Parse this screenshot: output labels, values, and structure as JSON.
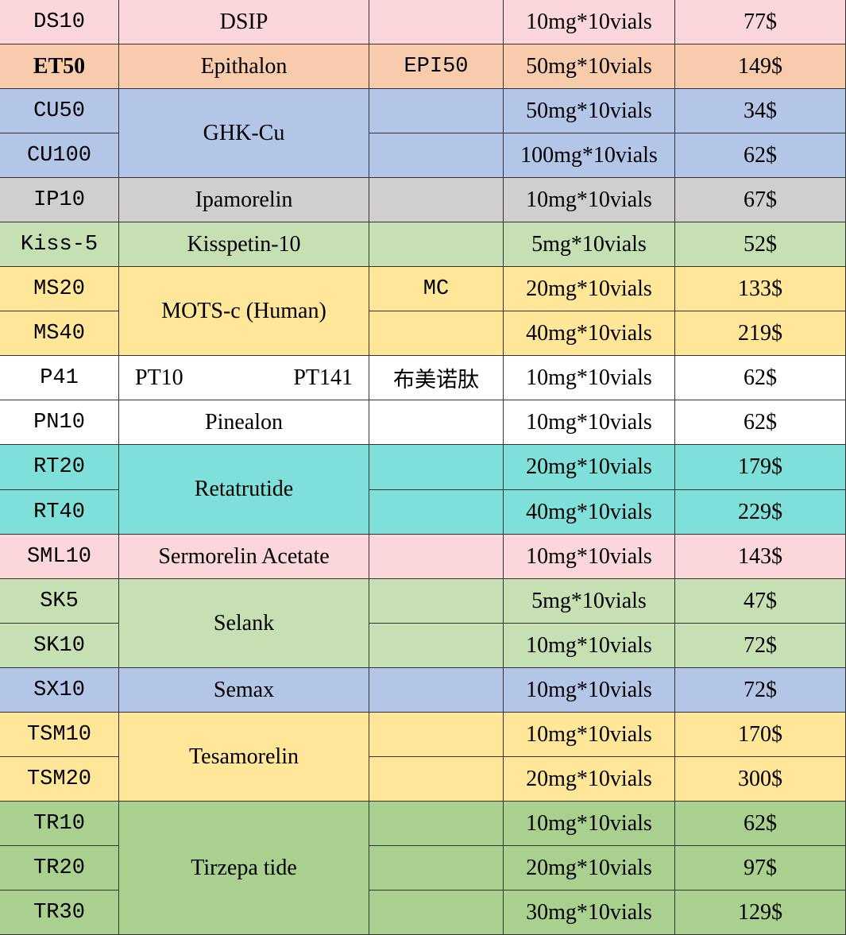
{
  "table": {
    "products": [
      {
        "name": "DSIP",
        "color": "#fbd7dc",
        "variants": [
          {
            "code": "DS10",
            "spec": "10mg*10vials",
            "price": "77$"
          }
        ]
      },
      {
        "name": "Epithalon",
        "color": "#f8cbad",
        "variants": [
          {
            "code": "ET50",
            "bold": true,
            "alias": "EPI50",
            "spec": "50mg*10vials",
            "price": "149$"
          }
        ]
      },
      {
        "name": "GHK-Cu",
        "color": "#b4c6e7",
        "variants": [
          {
            "code": "CU50",
            "spec": "50mg*10vials",
            "price": "34$"
          },
          {
            "code": "CU100",
            "spec": "100mg*10vials",
            "price": "62$"
          }
        ]
      },
      {
        "name": "Ipamorelin",
        "color": "#d0cece",
        "variants": [
          {
            "code": "IP10",
            "spec": "10mg*10vials",
            "price": "67$"
          }
        ]
      },
      {
        "name": "Kisspetin-10",
        "color": "#c6e0b4",
        "variants": [
          {
            "code": "Kiss-5",
            "spec": "5mg*10vials",
            "price": "52$"
          }
        ]
      },
      {
        "name": "MOTS-c (Human)",
        "color": "#ffe699",
        "variants": [
          {
            "code": "MS20",
            "alias": "MC",
            "spec": "20mg*10vials",
            "price": "133$"
          },
          {
            "code": "MS40",
            "spec": "40mg*10vials",
            "price": "219$"
          }
        ]
      },
      {
        "name": [
          "PT10",
          "PT141"
        ],
        "color": "#ffffff",
        "variants": [
          {
            "code": "P41",
            "alias": "布美诺肽",
            "spec": "10mg*10vials",
            "price": "62$"
          }
        ]
      },
      {
        "name": "Pinealon",
        "color": "#ffffff",
        "variants": [
          {
            "code": "PN10",
            "spec": "10mg*10vials",
            "price": "62$"
          }
        ]
      },
      {
        "name": "Retatrutide",
        "color": "#7fdfd9",
        "variants": [
          {
            "code": "RT20",
            "spec": "20mg*10vials",
            "price": "179$"
          },
          {
            "code": "RT40",
            "spec": "40mg*10vials",
            "price": "229$"
          }
        ]
      },
      {
        "name": "Sermorelin Acetate",
        "color": "#fbd7dc",
        "variants": [
          {
            "code": "SML10",
            "spec": "10mg*10vials",
            "price": "143$"
          }
        ]
      },
      {
        "name": "Selank",
        "color": "#c6e0b4",
        "variants": [
          {
            "code": "SK5",
            "spec": "5mg*10vials",
            "price": "47$"
          },
          {
            "code": "SK10",
            "spec": "10mg*10vials",
            "price": "72$"
          }
        ]
      },
      {
        "name": "Semax",
        "color": "#b4c6e7",
        "variants": [
          {
            "code": "SX10",
            "spec": "10mg*10vials",
            "price": "72$"
          }
        ]
      },
      {
        "name": "Tesamorelin",
        "color": "#ffe699",
        "variants": [
          {
            "code": "TSM10",
            "spec": "10mg*10vials",
            "price": "170$"
          },
          {
            "code": "TSM20",
            "spec": "20mg*10vials",
            "price": "300$"
          }
        ]
      },
      {
        "name": "Tirzepa tide",
        "color": "#a9d08e",
        "variants": [
          {
            "code": "TR10",
            "spec": "10mg*10vials",
            "price": "62$"
          },
          {
            "code": "TR20",
            "spec": "20mg*10vials",
            "price": "97$"
          },
          {
            "code": "TR30",
            "spec": "30mg*10vials",
            "price": "129$"
          }
        ]
      }
    ]
  }
}
